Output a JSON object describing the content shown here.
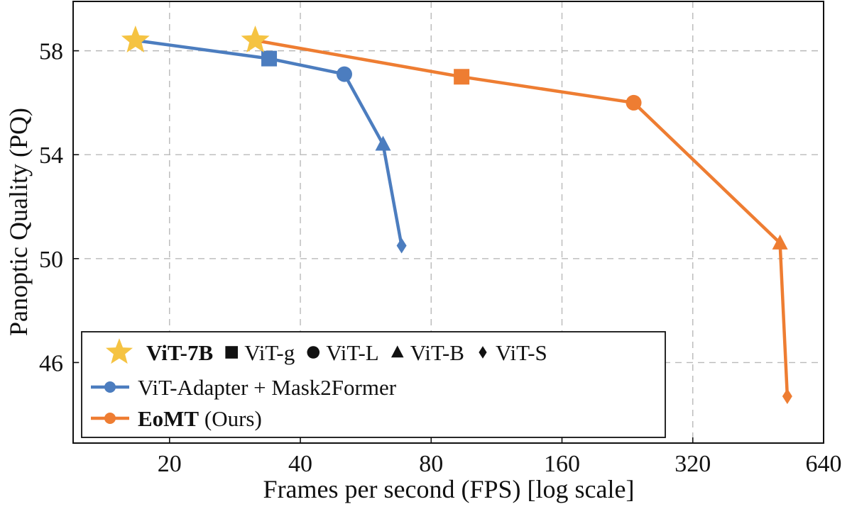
{
  "chart_data": {
    "type": "line",
    "xlabel": "Frames per second (FPS) [log scale]",
    "ylabel": "Panoptic Quality (PQ)",
    "x_scale": "log2",
    "xlim": [
      12,
      640
    ],
    "ylim": [
      42.9,
      59.9
    ],
    "xticks": [
      20,
      40,
      80,
      160,
      320,
      640
    ],
    "xtick_labels": [
      "20",
      "40",
      "80",
      "160",
      "320",
      "640"
    ],
    "yticks": [
      46,
      50,
      54,
      58
    ],
    "ytick_labels": [
      "46",
      "50",
      "54",
      "58"
    ],
    "grid": true,
    "legend_position": "bottom-left",
    "model_sizes": [
      {
        "label": "ViT-7B",
        "marker": "star",
        "bold": true
      },
      {
        "label": "ViT-g",
        "marker": "square",
        "bold": false
      },
      {
        "label": "ViT-L",
        "marker": "circle",
        "bold": false
      },
      {
        "label": "ViT-B",
        "marker": "triangle",
        "bold": false
      },
      {
        "label": "ViT-S",
        "marker": "diamond",
        "bold": false
      }
    ],
    "series": [
      {
        "name": "ViT-Adapter + Mask2Former",
        "name_bold": "",
        "name_rest": "ViT-Adapter + Mask2Former",
        "color": "#4C7DBF",
        "points": [
          {
            "model": "ViT-7B",
            "x": 16.7,
            "y": 58.4
          },
          {
            "model": "ViT-g",
            "x": 33.9,
            "y": 57.7
          },
          {
            "model": "ViT-L",
            "x": 50.5,
            "y": 57.1
          },
          {
            "model": "ViT-B",
            "x": 62.0,
            "y": 54.4
          },
          {
            "model": "ViT-S",
            "x": 68.4,
            "y": 50.5
          }
        ]
      },
      {
        "name": "EoMT (Ours)",
        "name_bold": "EoMT",
        "name_rest": " (Ours)",
        "color": "#EE7D32",
        "points": [
          {
            "model": "ViT-7B",
            "x": 31.5,
            "y": 58.4
          },
          {
            "model": "ViT-g",
            "x": 94.0,
            "y": 57.0
          },
          {
            "model": "ViT-L",
            "x": 234.0,
            "y": 56.0
          },
          {
            "model": "ViT-B",
            "x": 508.0,
            "y": 50.6
          },
          {
            "model": "ViT-S",
            "x": 528.0,
            "y": 44.7
          }
        ]
      }
    ],
    "highlight_color": "#F5C342"
  }
}
